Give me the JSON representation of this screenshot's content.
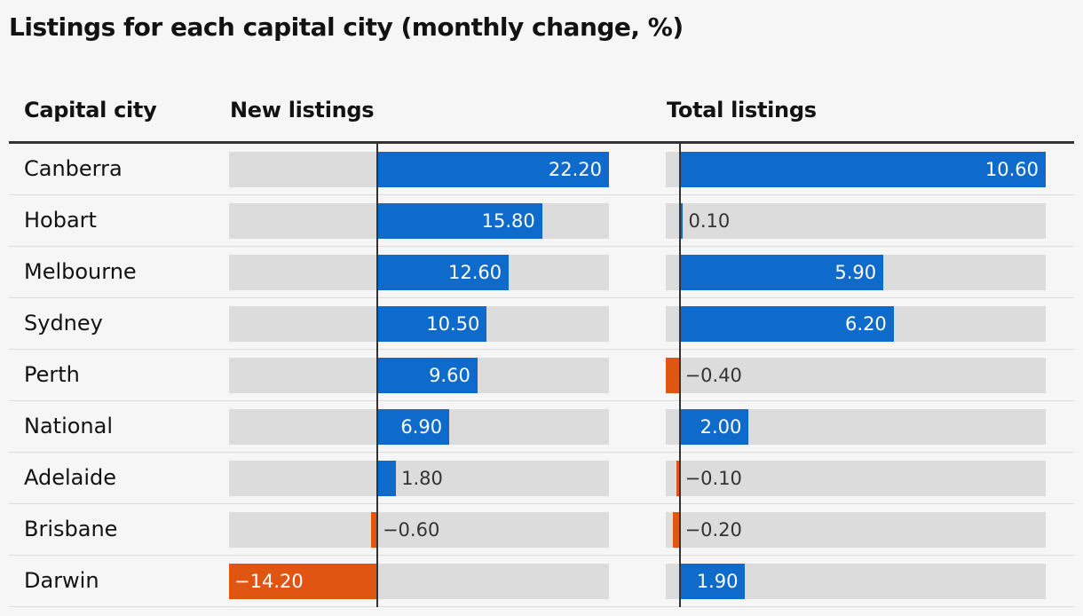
{
  "title": "Listings for each capital city (monthly change, %)",
  "columns": {
    "city": "Capital city",
    "new": "New listings",
    "total": "Total listings"
  },
  "colors": {
    "positive": "#0f6bcb",
    "negative": "#e05512",
    "track": "#dcdcdc"
  },
  "chart_data": {
    "type": "bar",
    "orientation": "horizontal",
    "categories": [
      "Canberra",
      "Hobart",
      "Melbourne",
      "Sydney",
      "Perth",
      "National",
      "Adelaide",
      "Brisbane",
      "Darwin"
    ],
    "series": [
      {
        "name": "New listings",
        "values": [
          22.2,
          15.8,
          12.6,
          10.5,
          9.6,
          6.9,
          1.8,
          -0.6,
          -14.2
        ],
        "labels": [
          "22.20",
          "15.80",
          "12.60",
          "10.50",
          "9.60",
          "6.90",
          "1.80",
          "−0.60",
          "−14.20"
        ],
        "xlim": [
          -14.2,
          22.2
        ]
      },
      {
        "name": "Total listings",
        "values": [
          10.6,
          0.1,
          5.9,
          6.2,
          -0.4,
          2.0,
          -0.1,
          -0.2,
          1.9
        ],
        "labels": [
          "10.60",
          "0.10",
          "5.90",
          "6.20",
          "−0.40",
          "2.00",
          "−0.10",
          "−0.20",
          "1.90"
        ],
        "xlim": [
          -0.4,
          10.6
        ]
      }
    ]
  }
}
